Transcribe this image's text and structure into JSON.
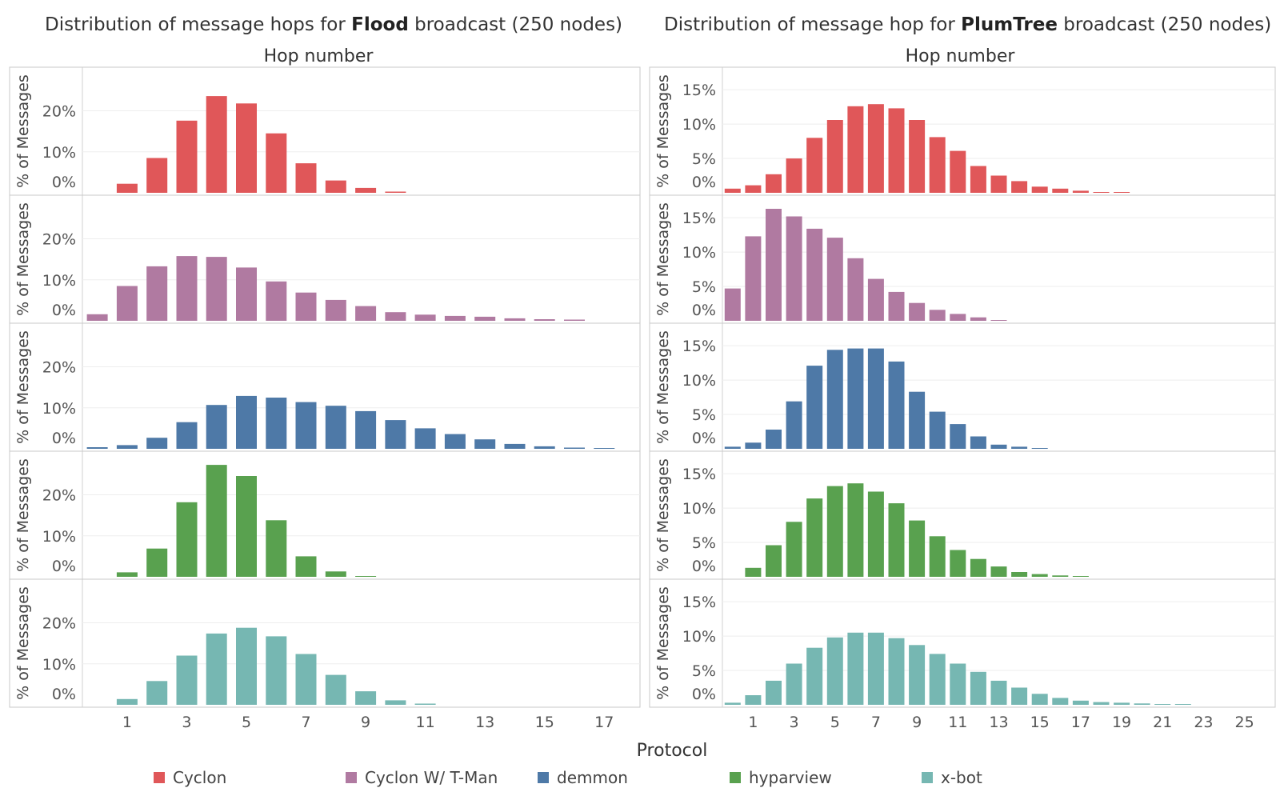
{
  "chart_data": [
    {
      "type": "bar",
      "title_prefix": "Distribution of message hops for ",
      "title_bold": "Flood",
      "title_suffix": " broadcast (250 nodes)",
      "xlabel": "Hop number",
      "ylabel": "% of Messages",
      "x_ticks": [
        "1",
        "3",
        "5",
        "7",
        "9",
        "11",
        "13",
        "15",
        "17"
      ],
      "y_ticks": [
        "0%",
        "10%",
        "20%"
      ],
      "ylim": [
        0,
        28.5
      ],
      "categories": [
        0,
        1,
        2,
        3,
        4,
        5,
        6,
        7,
        8,
        9,
        10,
        11,
        12,
        13,
        14,
        15,
        16,
        17
      ],
      "series": [
        {
          "name": "Cyclon",
          "values": [
            0,
            2.2,
            8.5,
            17.6,
            23.6,
            21.8,
            14.5,
            7.2,
            3.0,
            1.2,
            0.3,
            0,
            0,
            0,
            0,
            0,
            0,
            0
          ]
        },
        {
          "name": "Cyclon W/ T-Man",
          "values": [
            1.6,
            8.5,
            13.3,
            15.8,
            15.6,
            13.0,
            9.6,
            6.9,
            5.1,
            3.6,
            2.1,
            1.5,
            1.2,
            1.0,
            0.6,
            0.4,
            0.3,
            0
          ]
        },
        {
          "name": "demmon",
          "values": [
            0.4,
            0.9,
            2.7,
            6.5,
            10.7,
            12.9,
            12.5,
            11.4,
            10.5,
            9.2,
            7.0,
            5.0,
            3.6,
            2.3,
            1.2,
            0.6,
            0.3,
            0.2
          ]
        },
        {
          "name": "hyparview",
          "values": [
            0,
            1.1,
            6.9,
            18.2,
            27.3,
            24.6,
            13.8,
            5.0,
            1.3,
            0.2,
            0,
            0,
            0,
            0,
            0,
            0,
            0,
            0
          ]
        },
        {
          "name": "x-bot",
          "values": [
            0,
            1.4,
            5.8,
            12.0,
            17.4,
            18.8,
            16.7,
            12.4,
            7.3,
            3.3,
            1.1,
            0.3,
            0,
            0,
            0,
            0,
            0,
            0
          ]
        }
      ]
    },
    {
      "type": "bar",
      "title_prefix": "Distribution of message hop for ",
      "title_bold": "PlumTree",
      "title_suffix": " broadcast (250 nodes)",
      "xlabel": "Hop number",
      "ylabel": "% of Messages",
      "x_ticks": [
        "1",
        "3",
        "5",
        "7",
        "9",
        "11",
        "13",
        "15",
        "17",
        "19",
        "21",
        "23",
        "25"
      ],
      "y_ticks": [
        "0%",
        "5%",
        "10%",
        "15%"
      ],
      "ylim": [
        0,
        17
      ],
      "categories": [
        0,
        1,
        2,
        3,
        4,
        5,
        6,
        7,
        8,
        9,
        10,
        11,
        12,
        13,
        14,
        15,
        16,
        17,
        18,
        19,
        20,
        21,
        22,
        23,
        24,
        25
      ],
      "series": [
        {
          "name": "Cyclon",
          "values": [
            0.6,
            1.1,
            2.7,
            5.0,
            8.0,
            10.6,
            12.6,
            12.9,
            12.3,
            10.6,
            8.1,
            6.1,
            3.9,
            2.5,
            1.7,
            0.9,
            0.6,
            0.3,
            0.1,
            0.1,
            0,
            0,
            0,
            0,
            0,
            0
          ]
        },
        {
          "name": "Cyclon W/ T-Man",
          "values": [
            4.7,
            12.3,
            16.3,
            15.2,
            13.4,
            12.1,
            9.1,
            6.1,
            4.2,
            2.6,
            1.6,
            1.0,
            0.5,
            0.1,
            0,
            0,
            0,
            0,
            0,
            0,
            0,
            0,
            0,
            0,
            0,
            0
          ]
        },
        {
          "name": "demmon",
          "values": [
            0.3,
            0.9,
            2.8,
            6.9,
            12.1,
            14.4,
            14.6,
            14.6,
            12.7,
            8.3,
            5.4,
            3.6,
            1.8,
            0.6,
            0.3,
            0.1,
            0,
            0,
            0,
            0,
            0,
            0,
            0,
            0,
            0,
            0
          ]
        },
        {
          "name": "hyparview",
          "values": [
            0,
            1.3,
            4.6,
            8.0,
            11.4,
            13.2,
            13.6,
            12.4,
            10.7,
            8.2,
            5.9,
            3.9,
            2.6,
            1.5,
            0.7,
            0.4,
            0.2,
            0.1,
            0,
            0,
            0,
            0,
            0,
            0,
            0,
            0
          ]
        },
        {
          "name": "x-bot",
          "values": [
            0.3,
            1.4,
            3.5,
            6.0,
            8.3,
            9.8,
            10.5,
            10.5,
            9.7,
            8.7,
            7.4,
            6.0,
            4.8,
            3.5,
            2.5,
            1.6,
            1.0,
            0.6,
            0.4,
            0.3,
            0.2,
            0.1,
            0.1,
            0,
            0,
            0
          ]
        }
      ]
    }
  ],
  "legend": {
    "title": "Protocol",
    "items": [
      {
        "name": "Cyclon",
        "color": "#e05759"
      },
      {
        "name": "Cyclon W/ T-Man",
        "color": "#b07aa1"
      },
      {
        "name": "demmon",
        "color": "#4e79a7"
      },
      {
        "name": "hyparview",
        "color": "#59a14f"
      },
      {
        "name": "x-bot",
        "color": "#76b7b2"
      }
    ]
  }
}
